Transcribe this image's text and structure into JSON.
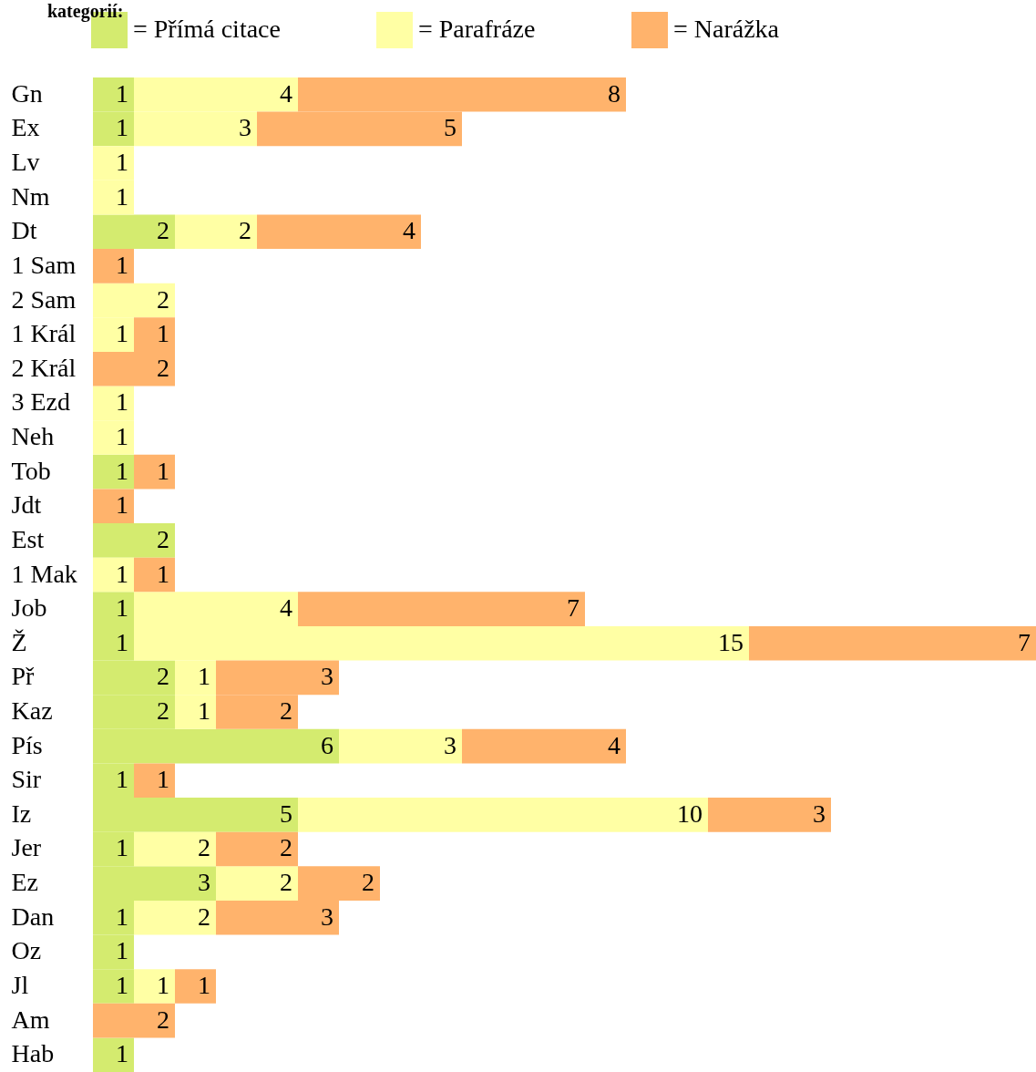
{
  "chart_data": {
    "type": "bar",
    "orientation": "horizontal",
    "stacked": true,
    "data_labels": true,
    "legend": "top",
    "title": "kategorií:",
    "categories": [
      "Gn",
      "Ex",
      "Lv",
      "Nm",
      "Dt",
      "1 Sam",
      "2 Sam",
      "1 Král",
      "2 Král",
      "3 Ezd",
      "Neh",
      "Tob",
      "Jdt",
      "Est",
      "1 Mak",
      "Job",
      "Ž",
      "Př",
      "Kaz",
      "Pís",
      "Sir",
      "Iz",
      "Jer",
      "Ez",
      "Dan",
      "Oz",
      "Jl",
      "Am",
      "Hab"
    ],
    "series": [
      {
        "name": "= Přímá citace",
        "color": "#d4eb6f",
        "values": [
          1,
          1,
          null,
          null,
          2,
          null,
          null,
          null,
          null,
          null,
          null,
          1,
          null,
          2,
          null,
          1,
          1,
          2,
          2,
          6,
          1,
          5,
          1,
          3,
          1,
          1,
          1,
          null,
          1
        ]
      },
      {
        "name": "= Parafráze",
        "color": "#ffffa4",
        "values": [
          4,
          3,
          1,
          1,
          2,
          null,
          2,
          1,
          null,
          1,
          1,
          null,
          null,
          null,
          1,
          4,
          15,
          1,
          1,
          3,
          null,
          10,
          2,
          2,
          2,
          null,
          1,
          null,
          null
        ]
      },
      {
        "name": "= Narážka",
        "color": "#ffb36c",
        "values": [
          8,
          5,
          null,
          null,
          4,
          1,
          null,
          1,
          2,
          null,
          null,
          1,
          1,
          null,
          1,
          7,
          7,
          3,
          2,
          4,
          1,
          3,
          2,
          2,
          3,
          null,
          1,
          2,
          null
        ]
      }
    ]
  }
}
